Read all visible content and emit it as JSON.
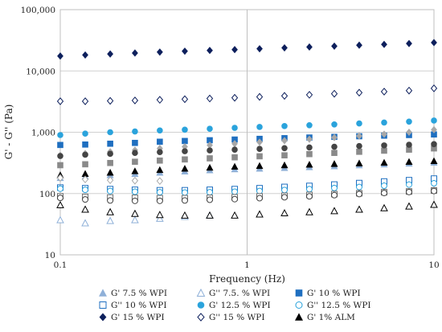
{
  "chart_data": {
    "type": "scatter",
    "xlabel": "Frequency (Hz)",
    "ylabel": "G' - G'' (Pa)",
    "x_scale": "log",
    "y_scale": "log",
    "xlim": [
      0.1,
      10
    ],
    "ylim": [
      10,
      100000
    ],
    "x_ticks": [
      0.1,
      1,
      10
    ],
    "x_tick_labels": [
      "0.1",
      "1",
      "10"
    ],
    "y_ticks": [
      10,
      100,
      1000,
      10000,
      100000
    ],
    "y_tick_labels": [
      "10",
      "100",
      "1,000",
      "10,000",
      "100,000"
    ],
    "grid": "horizontal major gridlines",
    "legend_position": "bottom",
    "x": [
      0.1,
      0.136,
      0.185,
      0.251,
      0.341,
      0.464,
      0.631,
      0.858,
      1.166,
      1.585,
      2.154,
      2.929,
      3.981,
      5.412,
      7.356,
      10.0
    ],
    "series": [
      {
        "name": "G' 7.5 % WPI",
        "marker": "triangle-filled",
        "color": "#8fb0d8",
        "values": [
          180,
          190,
          200,
          210,
          220,
          230,
          240,
          250,
          255,
          262,
          270,
          280,
          290,
          300,
          310,
          320
        ]
      },
      {
        "name": "G'' 7.5. % WPI",
        "marker": "triangle-open",
        "color": "#8fb0d8",
        "values": [
          37,
          33,
          36,
          37,
          39,
          42,
          44,
          null,
          null,
          null,
          null,
          null,
          null,
          null,
          null,
          null
        ]
      },
      {
        "name": "G' 10 % WPI",
        "marker": "square-filled",
        "color": "#1f6fc0",
        "values": [
          620,
          630,
          650,
          670,
          700,
          720,
          740,
          760,
          780,
          800,
          820,
          840,
          860,
          880,
          900,
          920
        ]
      },
      {
        "name": "G'' 10 % WPI",
        "marker": "square-open",
        "color": "#1f6fc0",
        "values": [
          125,
          122,
          118,
          115,
          113,
          113,
          115,
          118,
          122,
          128,
          133,
          140,
          148,
          157,
          165,
          175
        ]
      },
      {
        "name": "G' 12.5 % WPI",
        "marker": "circle-filled",
        "color": "#2aa3dc",
        "values": [
          900,
          950,
          1000,
          1030,
          1070,
          1100,
          1140,
          1180,
          1220,
          1260,
          1300,
          1340,
          1390,
          1440,
          1490,
          1550
        ]
      },
      {
        "name": "G'' 12.5 % WPI",
        "marker": "circle-open",
        "color": "#2aa3dc",
        "values": [
          120,
          115,
          110,
          107,
          105,
          104,
          105,
          107,
          110,
          114,
          118,
          123,
          128,
          134,
          140,
          147
        ]
      },
      {
        "name": "G' 15 % WPI",
        "marker": "diamond-filled",
        "color": "#0d1f5c",
        "values": [
          17500,
          18200,
          18900,
          19600,
          20300,
          21000,
          21600,
          22300,
          23000,
          23800,
          24600,
          25400,
          26300,
          27100,
          28000,
          29000
        ]
      },
      {
        "name": "G'' 15 % WPI",
        "marker": "diamond-open",
        "color": "#0d1f5c",
        "values": [
          3200,
          3200,
          3250,
          3300,
          3380,
          3460,
          3550,
          3650,
          3780,
          3920,
          4080,
          4250,
          4420,
          4600,
          4780,
          5200
        ]
      },
      {
        "name": "G' 1% ALM",
        "marker": "triangle-filled",
        "color": "#000000",
        "values": [
          200,
          210,
          220,
          232,
          243,
          255,
          265,
          275,
          283,
          290,
          297,
          305,
          312,
          320,
          330,
          340
        ]
      },
      {
        "name": "",
        "marker": "triangle-open",
        "color": "#000000",
        "values": [
          65,
          55,
          50,
          47,
          45,
          44,
          44,
          44,
          46,
          48,
          50,
          52,
          55,
          58,
          62,
          66
        ]
      },
      {
        "name": "",
        "marker": "diamond-filled",
        "color": "#a8a8a8",
        "values": [
          420,
          450,
          480,
          510,
          545,
          580,
          615,
          650,
          690,
          730,
          770,
          820,
          870,
          930,
          1000,
          1100
        ]
      },
      {
        "name": "",
        "marker": "diamond-open",
        "color": "#a8a8a8",
        "values": [
          180,
          170,
          165,
          162,
          160,
          null,
          null,
          null,
          null,
          null,
          null,
          null,
          null,
          null,
          null,
          null
        ]
      },
      {
        "name": "",
        "marker": "square-filled",
        "color": "#8a8a8a",
        "values": [
          290,
          300,
          315,
          330,
          345,
          360,
          375,
          390,
          405,
          420,
          440,
          460,
          480,
          500,
          520,
          545
        ]
      },
      {
        "name": "",
        "marker": "square-open",
        "color": "#6f6f6f",
        "values": [
          90,
          88,
          86,
          85,
          84,
          84,
          85,
          87,
          90,
          92,
          95,
          98,
          101,
          105,
          108,
          112
        ]
      },
      {
        "name": "",
        "marker": "circle-filled",
        "color": "#444444",
        "values": [
          410,
          430,
          445,
          460,
          475,
          490,
          505,
          520,
          535,
          550,
          565,
          580,
          595,
          610,
          625,
          640
        ]
      },
      {
        "name": "",
        "marker": "circle-open",
        "color": "#444444",
        "values": [
          85,
          80,
          77,
          76,
          76,
          77,
          79,
          81,
          84,
          87,
          90,
          94,
          98,
          102,
          106,
          110
        ]
      }
    ]
  }
}
